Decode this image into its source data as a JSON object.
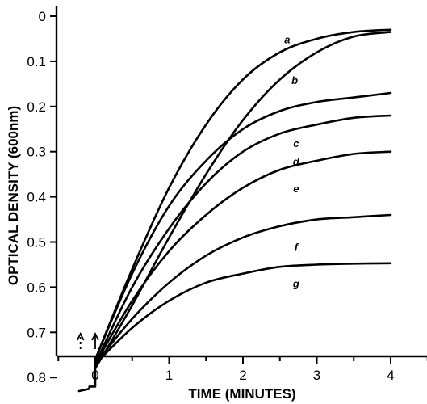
{
  "chart_data": {
    "type": "line",
    "xlabel": "TIME (MINUTES)",
    "ylabel": "OPTICAL DENSITY (600nm)",
    "xlim": [
      -0.5,
      4.5
    ],
    "ylim": [
      0.88,
      0.0
    ],
    "y_inverted": true,
    "x_ticks": [
      0,
      1,
      2,
      3,
      4
    ],
    "x_tick_labels": [
      "0",
      "1",
      "2",
      "3",
      "4"
    ],
    "y_ticks": [
      0.0,
      0.1,
      0.2,
      0.3,
      0.4,
      0.5,
      0.6,
      0.7,
      0.8
    ],
    "y_tick_labels": [
      "0",
      "0.1",
      "0.2",
      "0.3",
      "0.4",
      "0.5",
      "0.6",
      "0.7",
      "0.8"
    ],
    "grid": false,
    "baseline": {
      "x": [
        -0.22,
        -0.08,
        -0.08,
        0.0,
        0.0
      ],
      "y": [
        0.83,
        0.825,
        0.82,
        0.82,
        0.76
      ]
    },
    "series": [
      {
        "name": "a",
        "x": [
          0,
          0.5,
          1,
          1.5,
          2,
          2.5,
          3,
          3.5,
          4
        ],
        "y": [
          0.76,
          0.56,
          0.38,
          0.24,
          0.14,
          0.08,
          0.05,
          0.035,
          0.03
        ]
      },
      {
        "name": "b",
        "x": [
          0,
          0.5,
          1,
          1.5,
          2,
          2.5,
          3,
          3.5,
          4
        ],
        "y": [
          0.78,
          0.64,
          0.49,
          0.35,
          0.23,
          0.14,
          0.08,
          0.045,
          0.035
        ]
      },
      {
        "name": "c",
        "x": [
          0,
          0.5,
          1,
          1.5,
          2,
          2.5,
          3,
          3.5,
          4
        ],
        "y": [
          0.76,
          0.57,
          0.42,
          0.32,
          0.25,
          0.21,
          0.19,
          0.18,
          0.17
        ]
      },
      {
        "name": "d",
        "x": [
          0,
          0.5,
          1,
          1.5,
          2,
          2.5,
          3,
          3.5,
          4
        ],
        "y": [
          0.77,
          0.6,
          0.47,
          0.37,
          0.3,
          0.26,
          0.24,
          0.225,
          0.22
        ]
      },
      {
        "name": "e",
        "x": [
          0,
          0.5,
          1,
          1.5,
          2,
          2.5,
          3,
          3.5,
          4
        ],
        "y": [
          0.77,
          0.63,
          0.52,
          0.44,
          0.38,
          0.34,
          0.32,
          0.305,
          0.3
        ]
      },
      {
        "name": "f",
        "x": [
          0,
          0.5,
          1,
          1.5,
          2,
          2.5,
          3,
          3.5,
          4
        ],
        "y": [
          0.77,
          0.67,
          0.59,
          0.53,
          0.49,
          0.465,
          0.45,
          0.445,
          0.44
        ]
      },
      {
        "name": "g",
        "x": [
          0,
          0.5,
          1,
          1.5,
          2,
          2.5,
          3,
          3.5,
          4
        ],
        "y": [
          0.77,
          0.69,
          0.63,
          0.59,
          0.57,
          0.555,
          0.55,
          0.548,
          0.547
        ]
      }
    ],
    "series_label_positions": [
      {
        "name": "a",
        "x": 2.6,
        "y": 0.06
      },
      {
        "name": "b",
        "x": 2.7,
        "y": 0.15
      },
      {
        "name": "c",
        "x": 2.72,
        "y": 0.29
      },
      {
        "name": "d",
        "x": 2.72,
        "y": 0.33
      },
      {
        "name": "e",
        "x": 2.72,
        "y": 0.39
      },
      {
        "name": "f",
        "x": 2.72,
        "y": 0.52
      },
      {
        "name": "g",
        "x": 2.72,
        "y": 0.6
      }
    ],
    "arrows": [
      {
        "x": -0.2,
        "style": "dashed"
      },
      {
        "x": 0.0,
        "style": "solid"
      }
    ]
  }
}
